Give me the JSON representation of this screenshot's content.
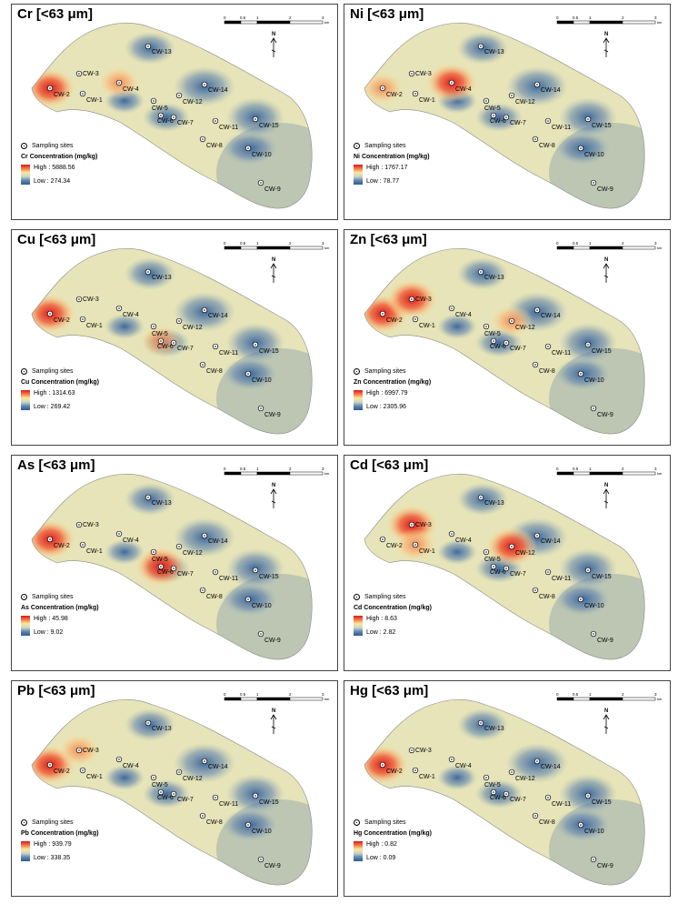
{
  "figure": {
    "legend_symbol_label": "Sampling sites",
    "scale_ticks": [
      "0",
      "0.5",
      "1",
      "2",
      "3"
    ],
    "scale_unit": "km",
    "north_label": "N",
    "sites": [
      "CW-1",
      "CW-2",
      "CW-3",
      "CW-4",
      "CW-5",
      "CW-6",
      "CW-7",
      "CW-8",
      "CW-9",
      "CW-10",
      "CW-11",
      "CW-12",
      "CW-13",
      "CW-14",
      "CW-15"
    ],
    "colors": {
      "high": "#d7191c",
      "mid": "#fbe7a0",
      "low": "#2b5b99"
    }
  },
  "panels": [
    {
      "title": "Cr [<63 μm]",
      "legend_title": "Cr Concentration (mg/kg)",
      "high": "High : 5888.56",
      "low": "Low : 274.34",
      "hotspots": [
        {
          "site": "CW-2",
          "level": "high"
        },
        {
          "site": "CW-4",
          "level": "mid-high"
        }
      ]
    },
    {
      "title": "Ni [<63 μm]",
      "legend_title": "Ni Concentration (mg/kg)",
      "high": "High : 1767.17",
      "low": "Low : 78.77",
      "hotspots": [
        {
          "site": "CW-4",
          "level": "high"
        },
        {
          "site": "CW-2",
          "level": "mid-high"
        }
      ]
    },
    {
      "title": "Cu [<63 μm]",
      "legend_title": "Cu Concentration (mg/kg)",
      "high": "High : 1314.63",
      "low": "Low : 269.42",
      "hotspots": [
        {
          "site": "CW-2",
          "level": "high"
        },
        {
          "site": "CW-6",
          "level": "mid-high"
        }
      ]
    },
    {
      "title": "Zn [<63 μm]",
      "legend_title": "Zn Concentration (mg/kg)",
      "high": "High : 6997.79",
      "low": "Low : 2305.96",
      "hotspots": [
        {
          "site": "CW-2",
          "level": "high"
        },
        {
          "site": "CW-3",
          "level": "high"
        },
        {
          "site": "CW-12",
          "level": "mid-high"
        }
      ]
    },
    {
      "title": "As [<63 μm]",
      "legend_title": "As Concentration (mg/kg)",
      "high": "High : 45.98",
      "low": "Low : 9.02",
      "hotspots": [
        {
          "site": "CW-6",
          "level": "high"
        },
        {
          "site": "CW-2",
          "level": "high"
        }
      ]
    },
    {
      "title": "Cd [<63 μm]",
      "legend_title": "Cd Concentration (mg/kg)",
      "high": "High : 8.63",
      "low": "Low : 2.82",
      "hotspots": [
        {
          "site": "CW-3",
          "level": "high"
        },
        {
          "site": "CW-12",
          "level": "high"
        },
        {
          "site": "CW-1",
          "level": "mid-high"
        }
      ]
    },
    {
      "title": "Pb [<63 μm]",
      "legend_title": "Pb Concentration (mg/kg)",
      "high": "High : 939.79",
      "low": "Low : 338.35",
      "hotspots": [
        {
          "site": "CW-2",
          "level": "high"
        },
        {
          "site": "CW-3",
          "level": "mid-high"
        }
      ]
    },
    {
      "title": "Hg [<63 μm]",
      "legend_title": "Hg Concentration (mg/kg)",
      "high": "High : 0.82",
      "low": "Low : 0.09",
      "hotspots": [
        {
          "site": "CW-2",
          "level": "high"
        }
      ]
    }
  ]
}
